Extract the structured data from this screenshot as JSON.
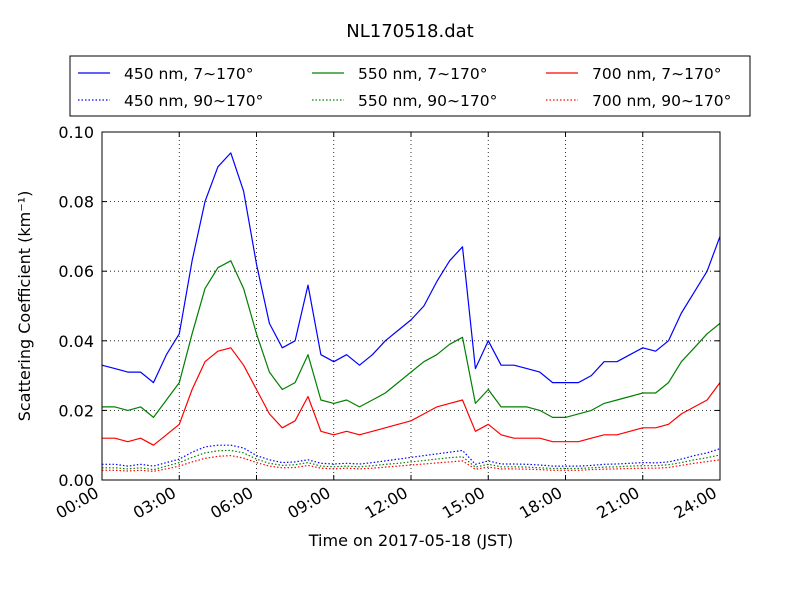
{
  "chart_data": {
    "type": "line",
    "title": "NL170518.dat",
    "xlabel": "Time on 2017-05-18 (JST)",
    "ylabel": "Scattering Coefficient (km⁻¹)",
    "xlim": [
      0,
      24
    ],
    "ylim": [
      0,
      0.1
    ],
    "x_ticks": [
      "00:00",
      "03:00",
      "06:00",
      "09:00",
      "12:00",
      "15:00",
      "18:00",
      "21:00",
      "24:00"
    ],
    "y_ticks": [
      "0.00",
      "0.02",
      "0.04",
      "0.06",
      "0.08",
      "0.10"
    ],
    "grid": true,
    "legend_position": "above plot",
    "x": [
      0,
      0.5,
      1,
      1.5,
      2,
      2.5,
      3,
      3.5,
      4,
      4.5,
      5,
      5.5,
      6,
      6.5,
      7,
      7.5,
      8,
      8.5,
      9,
      9.5,
      10,
      10.5,
      11,
      11.5,
      12,
      12.5,
      13,
      13.5,
      14,
      14.5,
      15,
      15.5,
      16,
      16.5,
      17,
      17.5,
      18,
      18.5,
      19,
      19.5,
      20,
      20.5,
      21,
      21.5,
      22,
      22.5,
      23,
      23.5,
      24
    ],
    "series": [
      {
        "name": "450 nm, 7∼170°",
        "color": "#0000ff",
        "style": "solid",
        "values": [
          0.033,
          0.032,
          0.031,
          0.031,
          0.028,
          0.036,
          0.042,
          0.063,
          0.08,
          0.09,
          0.094,
          0.083,
          0.062,
          0.045,
          0.038,
          0.04,
          0.056,
          0.036,
          0.034,
          0.036,
          0.033,
          0.036,
          0.04,
          0.043,
          0.046,
          0.05,
          0.057,
          0.063,
          0.067,
          0.032,
          0.04,
          0.033,
          0.033,
          0.032,
          0.031,
          0.028,
          0.028,
          0.028,
          0.03,
          0.034,
          0.034,
          0.036,
          0.038,
          0.037,
          0.04,
          0.048,
          0.054,
          0.06,
          0.07
        ]
      },
      {
        "name": "450 nm, 90∼170°",
        "color": "#0000ff",
        "style": "dotted",
        "values": [
          0.0045,
          0.0045,
          0.004,
          0.0045,
          0.004,
          0.005,
          0.006,
          0.008,
          0.0095,
          0.01,
          0.01,
          0.0092,
          0.007,
          0.0058,
          0.005,
          0.0052,
          0.0058,
          0.0048,
          0.0046,
          0.0048,
          0.0046,
          0.005,
          0.0055,
          0.006,
          0.0065,
          0.007,
          0.0075,
          0.008,
          0.0085,
          0.0045,
          0.0055,
          0.0046,
          0.0046,
          0.0045,
          0.0043,
          0.004,
          0.004,
          0.004,
          0.0042,
          0.0045,
          0.0046,
          0.0048,
          0.005,
          0.0049,
          0.0052,
          0.006,
          0.007,
          0.0078,
          0.009
        ]
      },
      {
        "name": "550 nm, 7∼170°",
        "color": "#008000",
        "style": "solid",
        "values": [
          0.021,
          0.021,
          0.02,
          0.021,
          0.018,
          0.023,
          0.028,
          0.042,
          0.055,
          0.061,
          0.063,
          0.055,
          0.042,
          0.031,
          0.026,
          0.028,
          0.036,
          0.023,
          0.022,
          0.023,
          0.021,
          0.023,
          0.025,
          0.028,
          0.031,
          0.034,
          0.036,
          0.039,
          0.041,
          0.022,
          0.026,
          0.021,
          0.021,
          0.021,
          0.02,
          0.018,
          0.018,
          0.019,
          0.02,
          0.022,
          0.023,
          0.024,
          0.025,
          0.025,
          0.028,
          0.034,
          0.038,
          0.042,
          0.045
        ]
      },
      {
        "name": "550 nm, 90∼170°",
        "color": "#008000",
        "style": "dotted",
        "values": [
          0.0035,
          0.0035,
          0.0032,
          0.0035,
          0.003,
          0.004,
          0.005,
          0.0065,
          0.0078,
          0.0084,
          0.0085,
          0.0078,
          0.006,
          0.0048,
          0.0042,
          0.0044,
          0.005,
          0.004,
          0.0038,
          0.004,
          0.0038,
          0.0041,
          0.0045,
          0.0048,
          0.0052,
          0.0056,
          0.006,
          0.0064,
          0.0067,
          0.0037,
          0.0045,
          0.0038,
          0.0038,
          0.0037,
          0.0035,
          0.0033,
          0.0033,
          0.0033,
          0.0035,
          0.0037,
          0.0038,
          0.004,
          0.0041,
          0.0041,
          0.0044,
          0.005,
          0.0058,
          0.0064,
          0.0072
        ]
      },
      {
        "name": "700 nm, 7∼170°",
        "color": "#ff0000",
        "style": "solid",
        "values": [
          0.012,
          0.012,
          0.011,
          0.012,
          0.01,
          0.013,
          0.016,
          0.026,
          0.034,
          0.037,
          0.038,
          0.033,
          0.026,
          0.019,
          0.015,
          0.017,
          0.024,
          0.014,
          0.013,
          0.014,
          0.013,
          0.014,
          0.015,
          0.016,
          0.017,
          0.019,
          0.021,
          0.022,
          0.023,
          0.014,
          0.016,
          0.013,
          0.012,
          0.012,
          0.012,
          0.011,
          0.011,
          0.011,
          0.012,
          0.013,
          0.013,
          0.014,
          0.015,
          0.015,
          0.016,
          0.019,
          0.021,
          0.023,
          0.028
        ]
      },
      {
        "name": "700 nm, 90∼170°",
        "color": "#ff0000",
        "style": "dotted",
        "values": [
          0.0028,
          0.0028,
          0.0026,
          0.0028,
          0.0025,
          0.0032,
          0.004,
          0.0052,
          0.0062,
          0.0068,
          0.007,
          0.0063,
          0.005,
          0.004,
          0.0035,
          0.0036,
          0.0042,
          0.0034,
          0.0032,
          0.0034,
          0.0032,
          0.0034,
          0.0037,
          0.004,
          0.0043,
          0.0046,
          0.0049,
          0.0052,
          0.0055,
          0.0031,
          0.0037,
          0.0032,
          0.0032,
          0.0031,
          0.003,
          0.0028,
          0.0028,
          0.0028,
          0.003,
          0.0031,
          0.0032,
          0.0033,
          0.0034,
          0.0034,
          0.0036,
          0.0042,
          0.0048,
          0.0053,
          0.0058
        ]
      }
    ]
  }
}
